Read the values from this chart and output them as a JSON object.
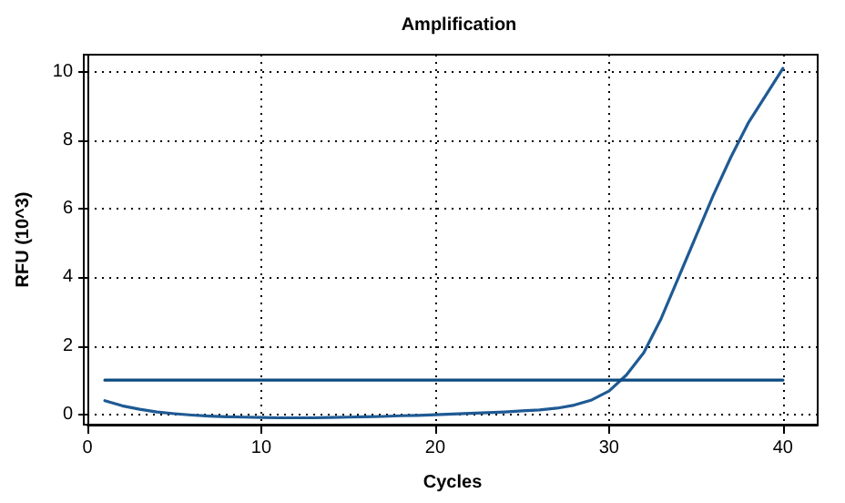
{
  "chart_data": {
    "type": "line",
    "title": "Amplification",
    "xlabel": "Cycles",
    "ylabel": "RFU (10^3)",
    "series": [
      {
        "color": "#1f5a94",
        "x": [
          1,
          2,
          3,
          4,
          5,
          6,
          7,
          8,
          9,
          10,
          11,
          12,
          13,
          14,
          15,
          16,
          17,
          18,
          19,
          20,
          21,
          22,
          23,
          24,
          25,
          26,
          27,
          28,
          29,
          30,
          31,
          32,
          33,
          34,
          35,
          36,
          37,
          38,
          39,
          40
        ],
        "values": [
          0.4,
          0.25,
          0.15,
          0.07,
          0.02,
          -0.02,
          -0.05,
          -0.07,
          -0.08,
          -0.09,
          -0.1,
          -0.1,
          -0.1,
          -0.09,
          -0.08,
          -0.07,
          -0.06,
          -0.04,
          -0.03,
          -0.01,
          0.01,
          0.03,
          0.05,
          0.07,
          0.1,
          0.13,
          0.18,
          0.27,
          0.42,
          0.68,
          1.15,
          1.8,
          2.8,
          4.0,
          5.2,
          6.4,
          7.5,
          8.5,
          9.3,
          10.1
        ]
      },
      {
        "color": "#0b4a80",
        "x": [
          1,
          40
        ],
        "values": [
          1,
          1
        ]
      }
    ],
    "xlim": [
      0,
      42
    ],
    "xticks": [
      0,
      10,
      20,
      30,
      40
    ],
    "ylim": [
      -0.3,
      10.5
    ],
    "yticks": [
      0,
      2,
      4,
      6,
      8,
      10
    ],
    "grid": true,
    "marker": "none",
    "line_style": "solid"
  }
}
